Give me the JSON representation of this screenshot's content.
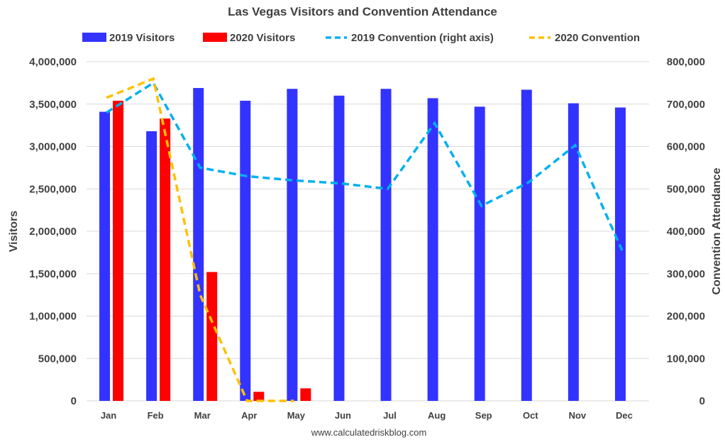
{
  "chart_data": {
    "type": "bar",
    "title": "Las Vegas Visitors and Convention Attendance",
    "ylabel": "Visitors",
    "y2label": "Convention Attendance",
    "source": "www.calculatedriskblog.com",
    "categories": [
      "Jan",
      "Feb",
      "Mar",
      "Apr",
      "May",
      "Jun",
      "Jul",
      "Aug",
      "Sep",
      "Oct",
      "Nov",
      "Dec"
    ],
    "ylim": [
      0,
      4000000
    ],
    "y2lim": [
      0,
      800000
    ],
    "yticks": [
      "0",
      "500,000",
      "1,000,000",
      "1,500,000",
      "2,000,000",
      "2,500,000",
      "3,000,000",
      "3,500,000",
      "4,000,000"
    ],
    "y2ticks": [
      "0",
      "100,000",
      "200,000",
      "300,000",
      "400,000",
      "500,000",
      "600,000",
      "700,000",
      "800,000"
    ],
    "grid": true,
    "legend_position": "top",
    "bar_series": [
      {
        "name": "2019 Visitors",
        "color": "#3333ff",
        "values": [
          3410000,
          3180000,
          3690000,
          3540000,
          3680000,
          3600000,
          3680000,
          3570000,
          3470000,
          3670000,
          3510000,
          3460000
        ]
      },
      {
        "name": "2020 Visitors",
        "color": "#ff0000",
        "values": [
          3540000,
          3330000,
          1520000,
          107000,
          148000,
          null,
          null,
          null,
          null,
          null,
          null,
          null
        ]
      }
    ],
    "line_series": [
      {
        "name": "2019 Convention (right axis)",
        "color": "#00b0f0",
        "axis": "right",
        "values": [
          680000,
          750000,
          550000,
          530000,
          520000,
          513000,
          500000,
          655000,
          460000,
          515000,
          603000,
          355000
        ]
      },
      {
        "name": "2020 Convention",
        "color": "#ffc000",
        "axis": "right",
        "values": [
          715000,
          760000,
          250000,
          0,
          0,
          null,
          null,
          null,
          null,
          null,
          null,
          null
        ]
      }
    ]
  }
}
